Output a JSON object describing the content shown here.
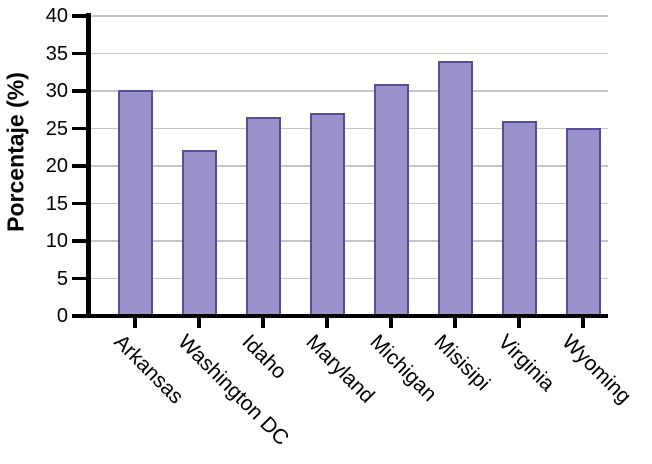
{
  "chart_data": {
    "type": "bar",
    "title": "",
    "xlabel": "",
    "ylabel": "Porcentaje (%)",
    "categories": [
      "Arkansas",
      "Washington DC",
      "Idaho",
      "Maryland",
      "Michigan",
      "Misisipi",
      "Virginia",
      "Wyoming"
    ],
    "values": [
      30.1,
      22.2,
      26.5,
      27.1,
      30.9,
      34.0,
      26.0,
      25.1
    ],
    "ylim": [
      0,
      40
    ],
    "yticks": [
      0,
      5,
      10,
      15,
      20,
      25,
      30,
      35,
      40
    ],
    "grid": true,
    "legend": "none",
    "x_label_rotation_deg": 45,
    "colors": {
      "bar_fill": "#9991c9",
      "bar_border": "#564e96",
      "gridline": "#c4c4c4",
      "axis": "#000000",
      "text": "#000000",
      "background": "#ffffff"
    }
  }
}
